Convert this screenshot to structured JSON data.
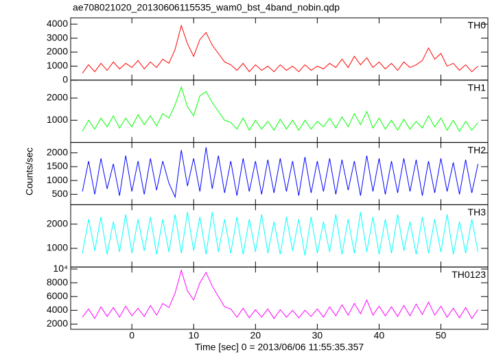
{
  "chart_data": {
    "type": "line",
    "title": "ae708021020_20130606115535_wam0_bst_4band_nobin.qdp",
    "x_label": "Time [sec] 0 = 2013/06/06 11:55:35.357",
    "y_label": "Counts/sec",
    "xlim": [
      -9.9,
      57.6
    ],
    "xticks": [
      0,
      10,
      20,
      30,
      40,
      50
    ],
    "x": [
      -8,
      -7,
      -6,
      -5,
      -4,
      -3,
      -2,
      -1,
      0,
      1,
      2,
      3,
      4,
      5,
      6,
      7,
      8,
      9,
      10,
      11,
      12,
      13,
      14,
      15,
      16,
      17,
      18,
      19,
      20,
      21,
      22,
      23,
      24,
      25,
      26,
      27,
      28,
      29,
      30,
      31,
      32,
      33,
      34,
      35,
      36,
      37,
      38,
      39,
      40,
      41,
      42,
      43,
      44,
      45,
      46,
      47,
      48,
      49,
      50,
      51,
      52,
      53,
      54,
      55,
      56
    ],
    "series": [
      {
        "name": "TH0",
        "color": "#ff0000",
        "ylim": [
          0,
          4450
        ],
        "yticks": [
          0,
          1000,
          2000,
          3000,
          4000
        ],
        "values": [
          500,
          1100,
          600,
          1200,
          700,
          1300,
          800,
          1200,
          900,
          1400,
          800,
          1300,
          900,
          1500,
          1200,
          2200,
          3900,
          2600,
          1700,
          2900,
          3400,
          2500,
          1900,
          1300,
          1100,
          700,
          1200,
          600,
          1100,
          700,
          1000,
          600,
          1100,
          700,
          1000,
          600,
          1100,
          700,
          1000,
          800,
          1200,
          900,
          1500,
          900,
          1700,
          1100,
          1600,
          900,
          1300,
          800,
          1200,
          700,
          1300,
          900,
          1100,
          1400,
          2300,
          1500,
          1900,
          1000,
          1200,
          700,
          1100,
          600,
          1000
        ]
      },
      {
        "name": "TH1",
        "color": "#00ff00",
        "ylim": [
          0,
          2810
        ],
        "yticks": [
          1000,
          2000
        ],
        "values": [
          500,
          1000,
          600,
          1100,
          700,
          1200,
          650,
          1100,
          700,
          1250,
          800,
          1200,
          750,
          1300,
          1100,
          1700,
          2500,
          1600,
          1200,
          2100,
          2300,
          1800,
          1400,
          1000,
          900,
          600,
          1100,
          550,
          1000,
          600,
          950,
          550,
          1050,
          600,
          1000,
          550,
          1000,
          600,
          950,
          700,
          1100,
          650,
          1150,
          700,
          1300,
          800,
          1400,
          650,
          1100,
          600,
          1000,
          550,
          1050,
          600,
          950,
          650,
          1200,
          700,
          1100,
          550,
          1000,
          500,
          950,
          550,
          900
        ]
      },
      {
        "name": "TH2",
        "color": "#0000ff",
        "ylim": [
          125,
          2375
        ],
        "yticks": [
          500,
          1000,
          1500,
          2000
        ],
        "values": [
          600,
          1700,
          500,
          1800,
          700,
          1600,
          450,
          1900,
          600,
          1700,
          500,
          1800,
          650,
          1700,
          900,
          400,
          2100,
          800,
          1800,
          600,
          2200,
          700,
          1900,
          550,
          1700,
          450,
          1800,
          600,
          1700,
          500,
          1750,
          550,
          1800,
          600,
          1700,
          450,
          1850,
          550,
          1700,
          600,
          1800,
          500,
          1750,
          650,
          1700,
          450,
          1900,
          600,
          1800,
          500,
          1700,
          550,
          1800,
          600,
          1750,
          450,
          1700,
          550,
          1800,
          600,
          1650,
          500,
          1750,
          550,
          1600
        ]
      },
      {
        "name": "TH3",
        "color": "#00ffff",
        "ylim": [
          230,
          2800
        ],
        "yticks": [
          1000,
          2000
        ],
        "values": [
          800,
          2200,
          900,
          2300,
          750,
          2100,
          850,
          2400,
          800,
          2200,
          900,
          2300,
          750,
          2200,
          850,
          2400,
          800,
          2500,
          900,
          2300,
          750,
          2500,
          850,
          2200,
          800,
          2300,
          750,
          2200,
          850,
          2400,
          800,
          2100,
          750,
          2300,
          900,
          2200,
          700,
          2300,
          800,
          2100,
          850,
          2400,
          750,
          2200,
          800,
          2500,
          850,
          2300,
          750,
          2200,
          800,
          2400,
          900,
          2100,
          750,
          2300,
          800,
          2200,
          850,
          2400,
          750,
          2100,
          800,
          2200,
          850
        ]
      },
      {
        "name": "TH0123",
        "color": "#ff00ff",
        "ylim": [
          1240,
          10290
        ],
        "yticks": [
          2000,
          4000,
          6000,
          8000,
          {
            "value": 10000,
            "label": "10⁴"
          }
        ],
        "values": [
          3000,
          4200,
          2800,
          4500,
          3100,
          4400,
          3000,
          4600,
          3200,
          4300,
          3100,
          4700,
          3300,
          5000,
          4400,
          6500,
          9800,
          6800,
          5500,
          8000,
          9500,
          7500,
          6000,
          4500,
          4200,
          3000,
          4300,
          2900,
          4100,
          3000,
          4200,
          2800,
          4100,
          3000,
          4000,
          2900,
          4000,
          3100,
          4200,
          3000,
          4500,
          3200,
          4800,
          3300,
          5000,
          3500,
          5500,
          3300,
          4600,
          3200,
          4500,
          3100,
          4700,
          3200,
          4900,
          3400,
          5200,
          3300,
          4600,
          3000,
          4300,
          2900,
          4400,
          2800,
          4100
        ]
      }
    ]
  }
}
